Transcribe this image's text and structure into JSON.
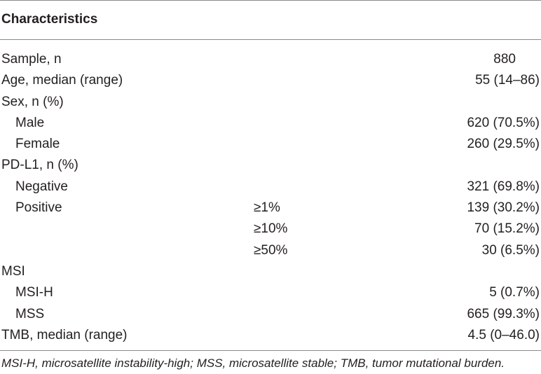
{
  "header": {
    "title": "Characteristics"
  },
  "rows": [
    {
      "label": "Sample, n",
      "sub": "",
      "value": "880"
    },
    {
      "label": "Age, median (range)",
      "sub": "",
      "value": "55 (14–86)"
    },
    {
      "label": "Sex, n (%)",
      "sub": "",
      "value": ""
    },
    {
      "label": "Male",
      "sub": "",
      "value": "620 (70.5%)"
    },
    {
      "label": "Female",
      "sub": "",
      "value": "260 (29.5%)"
    },
    {
      "label": "PD-L1, n (%)",
      "sub": "",
      "value": ""
    },
    {
      "label": "Negative",
      "sub": "",
      "value": "321 (69.8%)"
    },
    {
      "label": "Positive",
      "sub": "≥1%",
      "value": "139 (30.2%)"
    },
    {
      "label": "",
      "sub": "≥10%",
      "value": "70 (15.2%)"
    },
    {
      "label": "",
      "sub": "≥50%",
      "value": "30 (6.5%)"
    },
    {
      "label": "MSI",
      "sub": "",
      "value": ""
    },
    {
      "label": "MSI-H",
      "sub": "",
      "value": "5 (0.7%)"
    },
    {
      "label": "MSS",
      "sub": "",
      "value": "665 (99.3%)"
    },
    {
      "label": "TMB, median (range)",
      "sub": "",
      "value": "4.5 (0–46.0)"
    }
  ],
  "footnote": "MSI-H, microsatellite instability-high; MSS, microsatellite stable; TMB, tumor mutational burden."
}
